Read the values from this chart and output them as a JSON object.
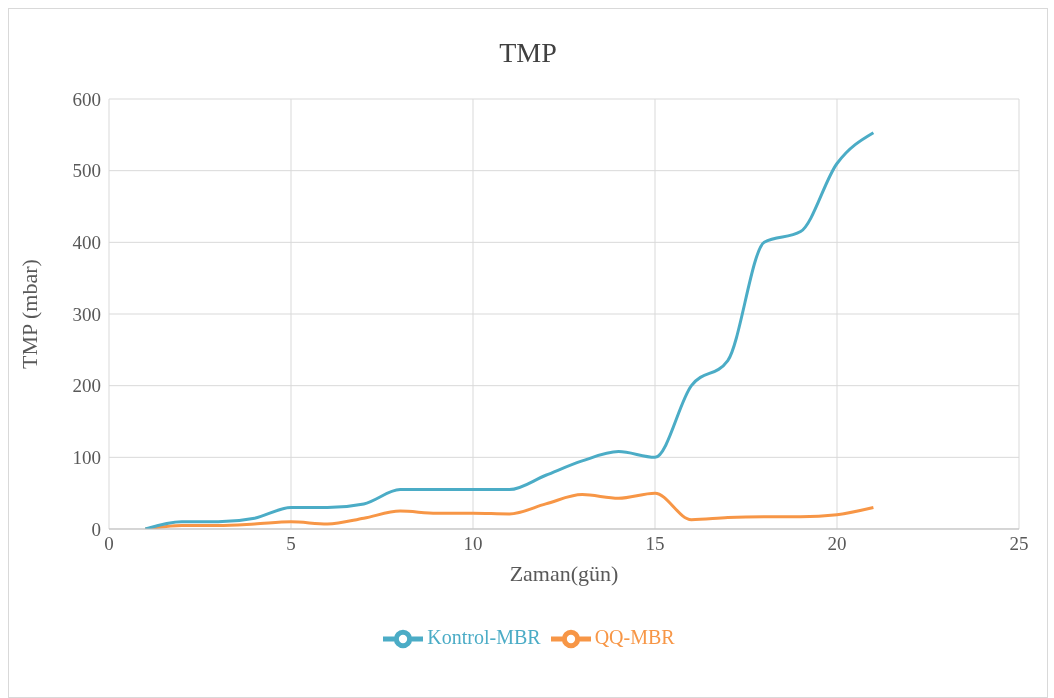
{
  "chart_data": {
    "type": "line",
    "title": "TMP",
    "xlabel": "Zaman(gün)",
    "ylabel": "TMP (mbar)",
    "x": [
      1,
      2,
      3,
      4,
      5,
      6,
      7,
      8,
      9,
      10,
      11,
      12,
      13,
      14,
      15,
      16,
      17,
      18,
      19,
      20,
      21
    ],
    "series": [
      {
        "name": "QQ-MBR",
        "color": "#f79646",
        "values": [
          0,
          5,
          5,
          7,
          10,
          7,
          15,
          25,
          22,
          22,
          21,
          35,
          48,
          43,
          50,
          13,
          16,
          17,
          17,
          20,
          30
        ]
      },
      {
        "name": "Kontrol-MBR",
        "color": "#4bacc6",
        "values": [
          0,
          10,
          10,
          15,
          30,
          30,
          35,
          55,
          55,
          55,
          55,
          75,
          95,
          108,
          100,
          200,
          235,
          400,
          415,
          510,
          553
        ]
      }
    ],
    "xlim": [
      0,
      25
    ],
    "xticks": [
      0,
      5,
      10,
      15,
      20,
      25
    ],
    "ylim": [
      0,
      600
    ],
    "yticks": [
      0,
      100,
      200,
      300,
      400,
      500,
      600
    ],
    "grid": true,
    "legend": "bottom",
    "marker": "none",
    "line_style": "solid"
  }
}
